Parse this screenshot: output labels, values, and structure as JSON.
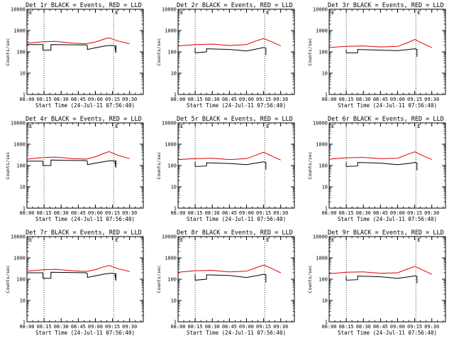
{
  "colors": {
    "events": "#000000",
    "lld": "#e00000",
    "axis": "#000000",
    "background": "#ffffff"
  },
  "chart_data": [
    {
      "type": "line",
      "title": "Det 1r BLACK = Events, RED = LLD",
      "marker": "E",
      "xlabel": "Start Time (24-Jul-11 07:56:40)",
      "ylabel": "Counts/sec",
      "x_ticks": [
        "08:00",
        "08:15",
        "08:30",
        "08:45",
        "09:00",
        "09:15",
        "09:30"
      ],
      "y_ticks": [
        "1",
        "10",
        "100",
        "1000",
        "10000"
      ],
      "yscale": "log",
      "ylim": [
        1,
        10000
      ],
      "series": [
        {
          "name": "Events",
          "segments": [
            {
              "x": [
                "08:00",
                "08:14",
                "08:14",
                "08:21",
                "08:21",
                "08:37",
                "08:52",
                "08:53",
                "08:53",
                "09:00",
                "09:10",
                "09:15",
                "09:17",
                "09:18",
                "09:18"
              ],
              "y": [
                220,
                220,
                120,
                120,
                220,
                215,
                210,
                195,
                130,
                155,
                195,
                200,
                190,
                90,
                210
              ]
            }
          ]
        },
        {
          "name": "LLD",
          "segments": [
            {
              "x": [
                "08:00",
                "08:15",
                "08:25",
                "08:40",
                "08:52",
                "09:00",
                "09:08",
                "09:12",
                "09:20",
                "09:30"
              ],
              "y": [
                260,
                300,
                310,
                260,
                240,
                290,
                400,
                460,
                320,
                240
              ]
            }
          ]
        }
      ]
    },
    {
      "type": "line",
      "title": "Det 2r BLACK = Events, RED = LLD",
      "marker": "E",
      "xlabel": "Start Time (24-Jul-11 07:56:40)",
      "ylabel": "Counts/sec",
      "x_ticks": [
        "08:00",
        "08:15",
        "08:30",
        "08:45",
        "09:00",
        "09:15",
        "09:30"
      ],
      "y_ticks": [
        "1",
        "10",
        "100",
        "1000",
        "10000"
      ],
      "yscale": "log",
      "ylim": [
        1,
        10000
      ],
      "series": [
        {
          "name": "Events",
          "segments": [
            {
              "x": [
                "08:15",
                "08:15",
                "08:25",
                "08:25",
                "08:45",
                "09:00",
                "09:10",
                "09:15",
                "09:17",
                "09:17"
              ],
              "y": [
                160,
                90,
                100,
                140,
                130,
                110,
                140,
                160,
                150,
                70
              ]
            }
          ]
        },
        {
          "name": "LLD",
          "segments": [
            {
              "x": [
                "08:00",
                "08:15",
                "08:30",
                "08:45",
                "09:00",
                "09:08",
                "09:15",
                "09:22",
                "09:30"
              ],
              "y": [
                190,
                220,
                230,
                200,
                220,
                320,
                420,
                300,
                190
              ]
            }
          ]
        }
      ]
    },
    {
      "type": "line",
      "title": "Det 3r BLACK = Events, RED = LLD",
      "marker": "E",
      "xlabel": "Start Time (24-Jul-11 07:56:40)",
      "ylabel": "Counts/sec",
      "x_ticks": [
        "08:00",
        "08:15",
        "08:30",
        "08:45",
        "09:00",
        "09:15",
        "09:30"
      ],
      "y_ticks": [
        "1",
        "10",
        "100",
        "1000",
        "10000"
      ],
      "yscale": "log",
      "ylim": [
        1,
        10000
      ],
      "series": [
        {
          "name": "Events",
          "segments": [
            {
              "x": [
                "08:15",
                "08:15",
                "08:25",
                "08:25",
                "08:45",
                "09:00",
                "09:10",
                "09:15",
                "09:17",
                "09:17"
              ],
              "y": [
                130,
                90,
                90,
                130,
                120,
                115,
                130,
                140,
                130,
                60
              ]
            }
          ]
        },
        {
          "name": "LLD",
          "segments": [
            {
              "x": [
                "08:00",
                "08:15",
                "08:30",
                "08:45",
                "09:00",
                "09:08",
                "09:15",
                "09:22",
                "09:30"
              ],
              "y": [
                160,
                180,
                190,
                170,
                180,
                260,
                380,
                250,
                160
              ]
            }
          ]
        }
      ]
    },
    {
      "type": "line",
      "title": "Det 4r BLACK = Events, RED = LLD",
      "marker": "E",
      "xlabel": "Start Time (24-Jul-11 07:56:40)",
      "ylabel": "Counts/sec",
      "x_ticks": [
        "08:00",
        "08:15",
        "08:30",
        "08:45",
        "09:00",
        "09:15",
        "09:30"
      ],
      "y_ticks": [
        "1",
        "10",
        "100",
        "1000",
        "10000"
      ],
      "yscale": "log",
      "ylim": [
        1,
        10000
      ],
      "series": [
        {
          "name": "Events",
          "segments": [
            {
              "x": [
                "08:00",
                "08:14",
                "08:14",
                "08:21",
                "08:21",
                "08:37",
                "08:52",
                "08:53",
                "08:53",
                "09:00",
                "09:10",
                "09:15",
                "09:17",
                "09:18",
                "09:18"
              ],
              "y": [
                160,
                160,
                100,
                100,
                180,
                175,
                170,
                160,
                110,
                130,
                160,
                170,
                160,
                80,
                180
              ]
            }
          ]
        },
        {
          "name": "LLD",
          "segments": [
            {
              "x": [
                "08:00",
                "08:15",
                "08:25",
                "08:40",
                "08:52",
                "09:00",
                "09:08",
                "09:12",
                "09:20",
                "09:30"
              ],
              "y": [
                200,
                240,
                250,
                210,
                200,
                260,
                380,
                450,
                300,
                210
              ]
            }
          ]
        }
      ]
    },
    {
      "type": "line",
      "title": "Det 5r BLACK = Events, RED = LLD",
      "marker": "E",
      "xlabel": "Start Time (24-Jul-11 07:56:40)",
      "ylabel": "Counts/sec",
      "x_ticks": [
        "08:00",
        "08:15",
        "08:30",
        "08:45",
        "09:00",
        "09:15",
        "09:30"
      ],
      "y_ticks": [
        "1",
        "10",
        "100",
        "1000",
        "10000"
      ],
      "yscale": "log",
      "ylim": [
        1,
        10000
      ],
      "series": [
        {
          "name": "Events",
          "segments": [
            {
              "x": [
                "08:15",
                "08:15",
                "08:25",
                "08:25",
                "08:45",
                "09:00",
                "09:10",
                "09:15",
                "09:17",
                "09:17"
              ],
              "y": [
                150,
                90,
                95,
                135,
                125,
                110,
                135,
                150,
                140,
                65
              ]
            }
          ]
        },
        {
          "name": "LLD",
          "segments": [
            {
              "x": [
                "08:00",
                "08:15",
                "08:30",
                "08:45",
                "09:00",
                "09:08",
                "09:15",
                "09:22",
                "09:30"
              ],
              "y": [
                190,
                210,
                220,
                190,
                210,
                300,
                420,
                280,
                180
              ]
            }
          ]
        }
      ]
    },
    {
      "type": "line",
      "title": "Det 6r BLACK = Events, RED = LLD",
      "marker": "E",
      "xlabel": "Start Time (24-Jul-11 07:56:40)",
      "ylabel": "Counts/sec",
      "x_ticks": [
        "08:00",
        "08:15",
        "08:30",
        "08:45",
        "09:00",
        "09:15",
        "09:30"
      ],
      "y_ticks": [
        "1",
        "10",
        "100",
        "1000",
        "10000"
      ],
      "yscale": "log",
      "ylim": [
        1,
        10000
      ],
      "series": [
        {
          "name": "Events",
          "segments": [
            {
              "x": [
                "08:15",
                "08:15",
                "08:25",
                "08:25",
                "08:45",
                "09:00",
                "09:10",
                "09:15",
                "09:17",
                "09:17"
              ],
              "y": [
                140,
                90,
                95,
                140,
                130,
                110,
                125,
                140,
                130,
                60
              ]
            }
          ]
        },
        {
          "name": "LLD",
          "segments": [
            {
              "x": [
                "08:00",
                "08:15",
                "08:30",
                "08:45",
                "09:00",
                "09:08",
                "09:15",
                "09:22",
                "09:30"
              ],
              "y": [
                200,
                230,
                240,
                210,
                220,
                320,
                440,
                290,
                190
              ]
            }
          ]
        }
      ]
    },
    {
      "type": "line",
      "title": "Det 7r BLACK = Events, RED = LLD",
      "marker": "E",
      "xlabel": "Start Time (24-Jul-11 07:56:40)",
      "ylabel": "Counts/sec",
      "x_ticks": [
        "08:00",
        "08:15",
        "08:30",
        "08:45",
        "09:00",
        "09:15",
        "09:30"
      ],
      "y_ticks": [
        "1",
        "10",
        "100",
        "1000",
        "10000"
      ],
      "yscale": "log",
      "ylim": [
        1,
        10000
      ],
      "series": [
        {
          "name": "Events",
          "segments": [
            {
              "x": [
                "08:00",
                "08:14",
                "08:14",
                "08:21",
                "08:21",
                "08:37",
                "08:52",
                "08:53",
                "08:53",
                "09:00",
                "09:10",
                "09:15",
                "09:17",
                "09:18",
                "09:18"
              ],
              "y": [
                200,
                200,
                110,
                110,
                210,
                205,
                200,
                185,
                120,
                145,
                180,
                190,
                180,
                85,
                195
              ]
            }
          ]
        },
        {
          "name": "LLD",
          "segments": [
            {
              "x": [
                "08:00",
                "08:15",
                "08:25",
                "08:40",
                "08:52",
                "09:00",
                "09:08",
                "09:12",
                "09:20",
                "09:30"
              ],
              "y": [
                240,
                280,
                290,
                250,
                230,
                280,
                390,
                440,
                310,
                230
              ]
            }
          ]
        }
      ]
    },
    {
      "type": "line",
      "title": "Det 8r BLACK = Events, RED = LLD",
      "marker": "E",
      "xlabel": "Start Time (24-Jul-11 07:56:40)",
      "ylabel": "Counts/sec",
      "x_ticks": [
        "08:00",
        "08:15",
        "08:30",
        "08:45",
        "09:00",
        "09:15",
        "09:30"
      ],
      "y_ticks": [
        "1",
        "10",
        "100",
        "1000",
        "10000"
      ],
      "yscale": "log",
      "ylim": [
        1,
        10000
      ],
      "series": [
        {
          "name": "Events",
          "segments": [
            {
              "x": [
                "08:15",
                "08:15",
                "08:25",
                "08:25",
                "08:45",
                "09:00",
                "09:10",
                "09:15",
                "09:17",
                "09:17"
              ],
              "y": [
                170,
                90,
                100,
                160,
                150,
                120,
                150,
                170,
                160,
                70
              ]
            }
          ]
        },
        {
          "name": "LLD",
          "segments": [
            {
              "x": [
                "08:00",
                "08:15",
                "08:30",
                "08:45",
                "09:00",
                "09:08",
                "09:15",
                "09:22",
                "09:30"
              ],
              "y": [
                210,
                250,
                260,
                220,
                240,
                340,
                460,
                320,
                200
              ]
            }
          ]
        }
      ]
    },
    {
      "type": "line",
      "title": "Det 9r BLACK = Events, RED = LLD",
      "marker": "E",
      "xlabel": "Start Time (24-Jul-11 07:56:40)",
      "ylabel": "Counts/sec",
      "x_ticks": [
        "08:00",
        "08:15",
        "08:30",
        "08:45",
        "09:00",
        "09:15",
        "09:30"
      ],
      "y_ticks": [
        "1",
        "10",
        "100",
        "1000",
        "10000"
      ],
      "yscale": "log",
      "ylim": [
        1,
        10000
      ],
      "series": [
        {
          "name": "Events",
          "segments": [
            {
              "x": [
                "08:15",
                "08:15",
                "08:25",
                "08:25",
                "08:45",
                "09:00",
                "09:10",
                "09:15",
                "09:17",
                "09:17"
              ],
              "y": [
                140,
                90,
                95,
                140,
                130,
                110,
                130,
                145,
                135,
                65
              ]
            }
          ]
        },
        {
          "name": "LLD",
          "segments": [
            {
              "x": [
                "08:00",
                "08:15",
                "08:30",
                "08:45",
                "09:00",
                "09:08",
                "09:15",
                "09:22",
                "09:30"
              ],
              "y": [
                180,
                210,
                220,
                190,
                200,
                290,
                400,
                270,
                170
              ]
            }
          ]
        }
      ]
    }
  ]
}
